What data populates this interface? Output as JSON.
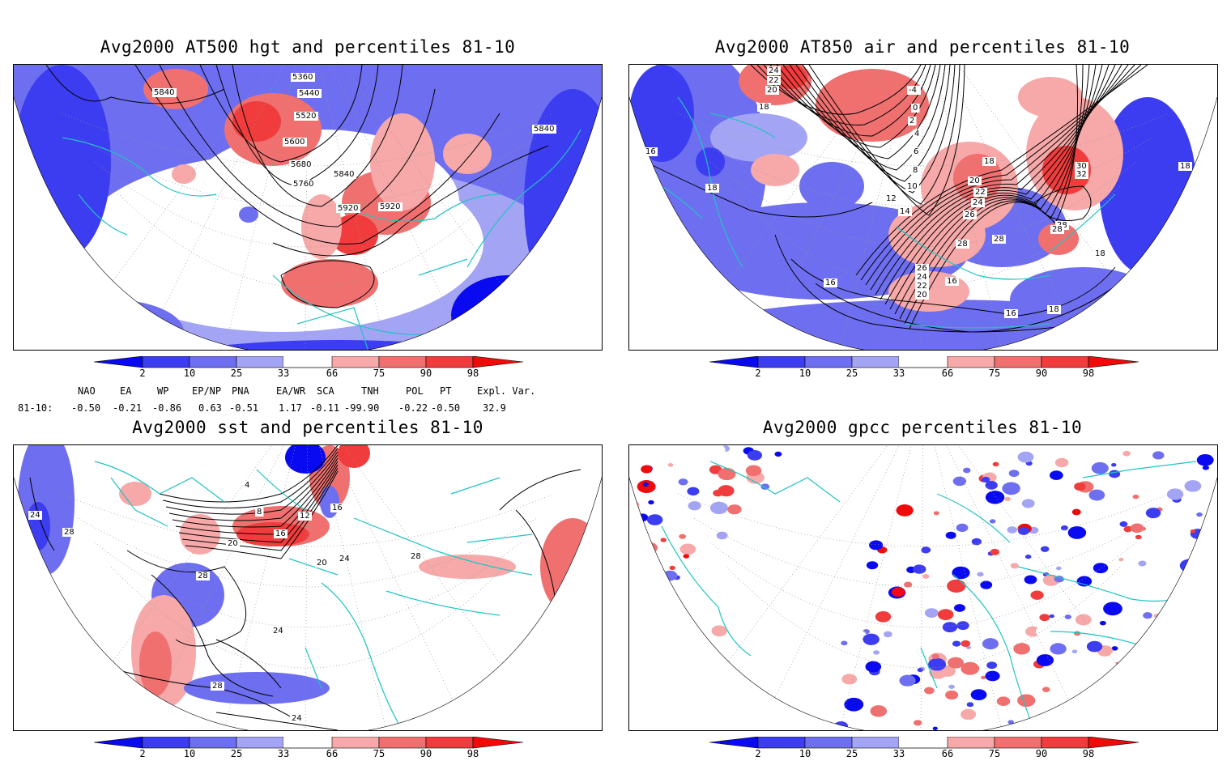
{
  "panels": [
    {
      "title": "Avg2000 AT500 hgt and percentiles 81-10",
      "contour_labels": [
        "5360",
        "5440",
        "5520",
        "5600",
        "5680",
        "5760",
        "5840",
        "5920",
        "5920",
        "5840",
        "5840"
      ]
    },
    {
      "title": "Avg2000 AT850 air and percentiles 81-10",
      "contour_labels": [
        "24",
        "22",
        "20",
        "18",
        "16",
        "18",
        "-4",
        "0",
        "2",
        "4",
        "6",
        "8",
        "10",
        "12",
        "14",
        "18",
        "20",
        "22",
        "24",
        "26",
        "28",
        "28",
        "30",
        "32",
        "28",
        "16",
        "18",
        "28",
        "26",
        "24",
        "22",
        "20",
        "16",
        "18",
        "16",
        "18"
      ]
    },
    {
      "title": "Avg2000 sst and percentiles 81-10",
      "contour_labels": [
        "24",
        "28",
        "4",
        "8",
        "12",
        "16",
        "20",
        "16",
        "20",
        "24",
        "28",
        "28",
        "24",
        "28",
        "24"
      ]
    },
    {
      "title": "Avg2000 gpcc percentiles 81-10",
      "contour_labels": []
    }
  ],
  "legend": {
    "labels": [
      "2",
      "10",
      "25",
      "33",
      "66",
      "75",
      "90",
      "98"
    ],
    "colors": [
      "#0a0af0",
      "#3c3cf0",
      "#6e6ef0",
      "#a4a4f5",
      "#ffffff",
      "#f7a8a8",
      "#f07070",
      "#f03c3c",
      "#f00a0a"
    ]
  },
  "indices": {
    "headers": [
      "NAO",
      "EA",
      "WP",
      "EP/NP",
      "PNA",
      "EA/WR",
      "SCA",
      "TNH",
      "POL",
      "PT",
      "Expl. Var."
    ],
    "row_label": "81-10:",
    "values": [
      "-0.50",
      "-0.21",
      "-0.86",
      "0.63",
      "-0.51",
      "1.17",
      "-0.11",
      "-99.90",
      "-0.22",
      "-0.50",
      "32.9"
    ]
  },
  "colors": {
    "coast": "#21c3c3",
    "contour": "#000000",
    "grid": "#999999"
  }
}
